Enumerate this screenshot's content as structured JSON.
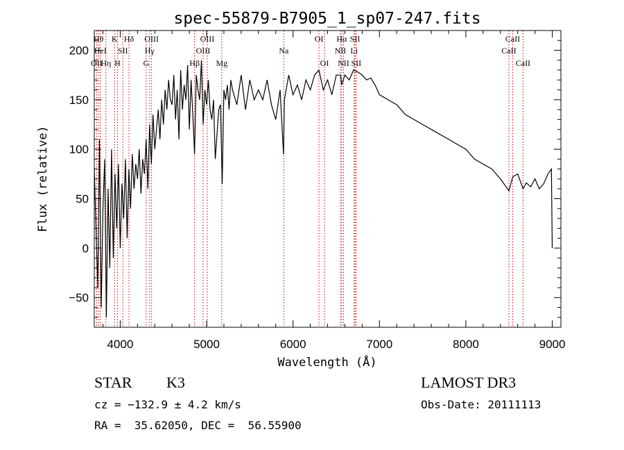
{
  "chart_data": {
    "type": "line",
    "title": "spec-55879-B7905_1_sp07-247.fits",
    "xlabel": "Wavelength (Å)",
    "ylabel": "Flux (relative)",
    "xlim": [
      3700,
      9100
    ],
    "ylim": [
      -80,
      220
    ],
    "xticks": [
      {
        "value": 4000,
        "label": "4000"
      },
      {
        "value": 5000,
        "label": "5000"
      },
      {
        "value": 6000,
        "label": "6000"
      },
      {
        "value": 7000,
        "label": "7000"
      },
      {
        "value": 8000,
        "label": "8000"
      },
      {
        "value": 9000,
        "label": "9000"
      }
    ],
    "yticks": [
      {
        "value": -50,
        "label": "−50"
      },
      {
        "value": 0,
        "label": "0"
      },
      {
        "value": 50,
        "label": "50"
      },
      {
        "value": 100,
        "label": "100"
      },
      {
        "value": 150,
        "label": "150"
      },
      {
        "value": 200,
        "label": "200"
      }
    ],
    "x_minor_step": 200,
    "y_minor_step": 10,
    "series": [
      {
        "name": "flux",
        "x": [
          3700,
          3720,
          3740,
          3760,
          3780,
          3800,
          3820,
          3840,
          3860,
          3880,
          3900,
          3920,
          3940,
          3960,
          3980,
          4000,
          4020,
          4040,
          4060,
          4080,
          4100,
          4120,
          4140,
          4160,
          4180,
          4200,
          4220,
          4240,
          4260,
          4280,
          4300,
          4320,
          4340,
          4360,
          4380,
          4400,
          4420,
          4440,
          4460,
          4480,
          4500,
          4520,
          4540,
          4560,
          4580,
          4600,
          4620,
          4640,
          4660,
          4680,
          4700,
          4720,
          4740,
          4760,
          4780,
          4800,
          4820,
          4840,
          4860,
          4880,
          4900,
          4920,
          4940,
          4960,
          4980,
          5000,
          5020,
          5040,
          5060,
          5080,
          5100,
          5120,
          5140,
          5160,
          5180,
          5200,
          5220,
          5240,
          5260,
          5280,
          5300,
          5350,
          5400,
          5450,
          5500,
          5550,
          5600,
          5650,
          5700,
          5750,
          5800,
          5850,
          5890,
          5900,
          5950,
          6000,
          6050,
          6100,
          6150,
          6200,
          6250,
          6300,
          6350,
          6400,
          6450,
          6500,
          6550,
          6563,
          6600,
          6650,
          6700,
          6750,
          6800,
          6850,
          6900,
          6950,
          7000,
          7100,
          7200,
          7300,
          7400,
          7500,
          7600,
          7700,
          7800,
          7900,
          8000,
          8100,
          8200,
          8300,
          8400,
          8498,
          8542,
          8600,
          8662,
          8700,
          8750,
          8800,
          8850,
          8900,
          8950,
          8990,
          9000
        ],
        "values": [
          80,
          20,
          -40,
          110,
          -60,
          40,
          90,
          -70,
          60,
          -20,
          100,
          -10,
          75,
          20,
          85,
          0,
          65,
          30,
          90,
          10,
          80,
          40,
          95,
          60,
          85,
          70,
          100,
          55,
          90,
          75,
          110,
          60,
          125,
          85,
          135,
          100,
          120,
          140,
          110,
          150,
          125,
          160,
          140,
          170,
          150,
          145,
          175,
          130,
          160,
          110,
          180,
          140,
          165,
          150,
          185,
          120,
          170,
          135,
          95,
          175,
          160,
          150,
          190,
          125,
          160,
          145,
          170,
          140,
          130,
          150,
          90,
          115,
          140,
          145,
          65,
          160,
          150,
          165,
          140,
          170,
          160,
          145,
          175,
          140,
          170,
          150,
          160,
          150,
          170,
          145,
          130,
          160,
          95,
          150,
          175,
          155,
          165,
          150,
          170,
          160,
          175,
          180,
          160,
          170,
          155,
          175,
          175,
          165,
          175,
          170,
          180,
          178,
          175,
          170,
          172,
          165,
          155,
          150,
          145,
          135,
          130,
          125,
          120,
          115,
          110,
          105,
          100,
          90,
          85,
          80,
          70,
          58,
          72,
          75,
          60,
          66,
          62,
          70,
          60,
          65,
          75,
          80,
          0
        ]
      }
    ],
    "line_markers": [
      {
        "x": 3750,
        "label": "Hθ",
        "row": 1
      },
      {
        "x": 3727,
        "label": "OII",
        "row": 3
      },
      {
        "x": 3770,
        "label": "HeI",
        "row": 2
      },
      {
        "x": 3835,
        "label": "Hη",
        "row": 3
      },
      {
        "x": 3934,
        "label": "K",
        "row": 1
      },
      {
        "x": 3968,
        "label": "H",
        "row": 3
      },
      {
        "x": 4030,
        "label": "SII",
        "row": 2
      },
      {
        "x": 4102,
        "label": "Hδ",
        "row": 1
      },
      {
        "x": 4300,
        "label": "G",
        "row": 3
      },
      {
        "x": 4340,
        "label": "Hγ",
        "row": 2
      },
      {
        "x": 4363,
        "label": "OIII",
        "row": 1
      },
      {
        "x": 4861,
        "label": "Hβ",
        "row": 3
      },
      {
        "x": 4959,
        "label": "OIII",
        "row": 2
      },
      {
        "x": 5007,
        "label": "OIII",
        "row": 1
      },
      {
        "x": 5175,
        "label": "Mg",
        "row": 3
      },
      {
        "x": 5893,
        "label": "Na",
        "row": 2
      },
      {
        "x": 6300,
        "label": "OI",
        "row": 1
      },
      {
        "x": 6364,
        "label": "OI",
        "row": 3
      },
      {
        "x": 6548,
        "label": "NII",
        "row": 2
      },
      {
        "x": 6563,
        "label": "Hα",
        "row": 1
      },
      {
        "x": 6584,
        "label": "NII",
        "row": 3
      },
      {
        "x": 6707,
        "label": "Li",
        "row": 2
      },
      {
        "x": 6717,
        "label": "SII",
        "row": 1
      },
      {
        "x": 6731,
        "label": "SII",
        "row": 3
      },
      {
        "x": 8498,
        "label": "CaII",
        "row": 2
      },
      {
        "x": 8542,
        "label": "CaII",
        "row": 1
      },
      {
        "x": 8662,
        "label": "CaII",
        "row": 3
      }
    ]
  },
  "info": {
    "class_label": "STAR",
    "subclass": "K3",
    "survey": "LAMOST DR3",
    "redshift": "cz = −132.9 ± 4.2 km/s",
    "obs_date": "Obs-Date: 20111113",
    "coords": "RA =  35.62050, DEC =  56.55900"
  }
}
